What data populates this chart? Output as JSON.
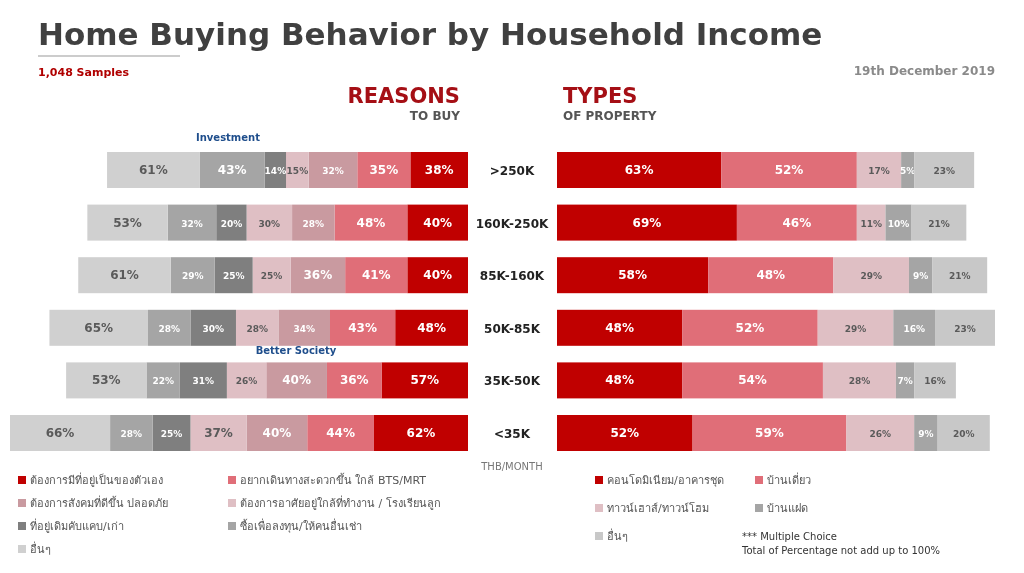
{
  "chart_data": [
    {
      "type": "other",
      "title": "Home Buying Behavior by Household Income",
      "subtitle": "1,048 Samples",
      "annotations": [
        "19th December 2019"
      ]
    },
    {
      "type": "bar",
      "orientation": "horizontal",
      "stacked": true,
      "title": "REASONS",
      "subtitle": "TO BUY",
      "ylabel": "THB/MONTH",
      "legend": "bottom",
      "categories": [
        ">250K",
        "160K-250K",
        "85K-160K",
        "50K-85K",
        "35K-50K",
        "<35K"
      ],
      "series": [
        {
          "name": "ต้องการมีที่อยู่เป็นของตัวเอง",
          "color": "#c00000",
          "values": [
            38,
            40,
            40,
            48,
            57,
            62
          ],
          "value_labels": [
            "38%",
            "40%",
            "40%",
            "48%",
            "57%",
            "62%"
          ]
        },
        {
          "name": "อยากเดินทางสะดวกขึ้น ใกล้ BTS/MRT",
          "color": "#e06e78",
          "values": [
            35,
            48,
            41,
            43,
            36,
            44
          ],
          "value_labels": [
            "35%",
            "48%",
            "41%",
            "43%",
            "36%",
            "44%"
          ]
        },
        {
          "name": "ต้องการสังคมที่ดีขึ้น ปลอดภัย",
          "color": "#c99aa0",
          "values": [
            32,
            28,
            36,
            34,
            40,
            40
          ],
          "value_labels": [
            "32%",
            "28%",
            "36%",
            "34%",
            "40%",
            "40%"
          ]
        },
        {
          "name": "ต้องการอาศัยอยู่ใกล้ที่ทำงาน / โรงเรียนลูก",
          "color": "#dfbfc4",
          "values": [
            15,
            30,
            25,
            28,
            26,
            37
          ],
          "value_labels": [
            "15%",
            "30%",
            "25%",
            "28%",
            "26%",
            "37%"
          ]
        },
        {
          "name": "ที่อยู่เดิมคับแคบ/เก่า",
          "color": "#7f7f7f",
          "values": [
            14,
            20,
            25,
            30,
            31,
            25
          ],
          "value_labels": [
            "14%",
            "20%",
            "25%",
            "30%",
            "31%",
            "25%"
          ]
        },
        {
          "name": "ซื้อเพื่อลงทุน/ให้คนอื่นเช่า",
          "color": "#a5a5a5",
          "values": [
            43,
            32,
            29,
            28,
            22,
            28
          ],
          "value_labels": [
            "43%",
            "32%",
            "29%",
            "28%",
            "22%",
            "28%"
          ]
        },
        {
          "name": "อื่นๆ",
          "color": "#d0d0d0",
          "values": [
            61,
            53,
            61,
            65,
            53,
            66
          ],
          "value_labels": [
            "61%",
            "53%",
            "61%",
            "65%",
            "53%",
            "66%"
          ]
        }
      ],
      "annotations": [
        "Investment",
        "Better Society"
      ]
    },
    {
      "type": "bar",
      "orientation": "horizontal",
      "stacked": true,
      "title": "TYPES",
      "subtitle": "OF PROPERTY",
      "legend": "bottom",
      "series": [
        {
          "name": "คอนโดมิเนียม/อาคารชุด",
          "color": "#c00000",
          "values": [
            63,
            69,
            58,
            48,
            48,
            52
          ],
          "value_labels": [
            "63%",
            "69%",
            "58%",
            "48%",
            "48%",
            "52%"
          ]
        },
        {
          "name": "บ้านเดี่ยว",
          "color": "#e06e78",
          "values": [
            52,
            46,
            48,
            52,
            54,
            59
          ],
          "value_labels": [
            "52%",
            "46%",
            "48%",
            "52%",
            "54%",
            "59%"
          ]
        },
        {
          "name": "ทาวน์เฮาส์/ทาวน์โฮม",
          "color": "#dfbfc4",
          "values": [
            17,
            11,
            29,
            29,
            28,
            26
          ],
          "value_labels": [
            "17%",
            "11%",
            "29%",
            "29%",
            "28%",
            "26%"
          ]
        },
        {
          "name": "บ้านแฝด",
          "color": "#a5a5a5",
          "values": [
            5,
            10,
            9,
            16,
            7,
            9
          ],
          "value_labels": [
            "5%",
            "10%",
            "9%",
            "16%",
            "7%",
            "9%"
          ]
        },
        {
          "name": "อื่นๆ",
          "color": "#c8c8c8",
          "values": [
            23,
            21,
            21,
            23,
            16,
            20
          ],
          "value_labels": [
            "23%",
            "21%",
            "21%",
            "23%",
            "16%",
            "20%"
          ]
        }
      ],
      "annotations": [
        "*** Multiple Choice\nTotal of Percentage not add up to 100%"
      ]
    }
  ]
}
